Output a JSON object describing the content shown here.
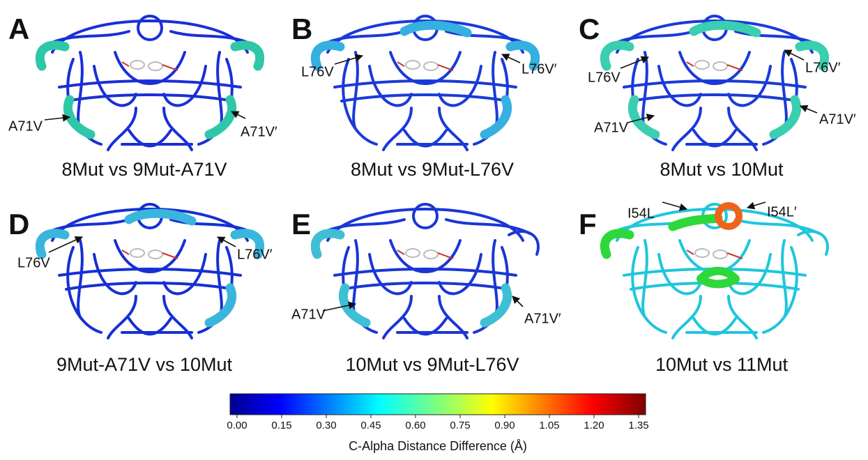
{
  "panels": [
    {
      "letter": "A",
      "caption": "8Mut vs 9Mut-A71V",
      "annotations": [
        "A71V",
        "A71V′"
      ]
    },
    {
      "letter": "B",
      "caption": "8Mut vs 9Mut-L76V",
      "annotations": [
        "L76V",
        "L76V′"
      ]
    },
    {
      "letter": "C",
      "caption": "8Mut vs 10Mut",
      "annotations": [
        "L76V",
        "L76V′",
        "A71V",
        "A71V′"
      ]
    },
    {
      "letter": "D",
      "caption": "9Mut-A71V vs 10Mut",
      "annotations": [
        "L76V",
        "L76V′"
      ]
    },
    {
      "letter": "E",
      "caption": "10Mut vs 9Mut-L76V",
      "annotations": [
        "A71V",
        "A71V′"
      ]
    },
    {
      "letter": "F",
      "caption": "10Mut vs 11Mut",
      "annotations": [
        "I54L",
        "I54L′"
      ]
    }
  ],
  "colorbar": {
    "ticks": [
      "0.00",
      "0.15",
      "0.30",
      "0.45",
      "0.60",
      "0.75",
      "0.90",
      "1.05",
      "1.20",
      "1.35"
    ],
    "label": "C-Alpha Distance Difference (Å)"
  }
}
